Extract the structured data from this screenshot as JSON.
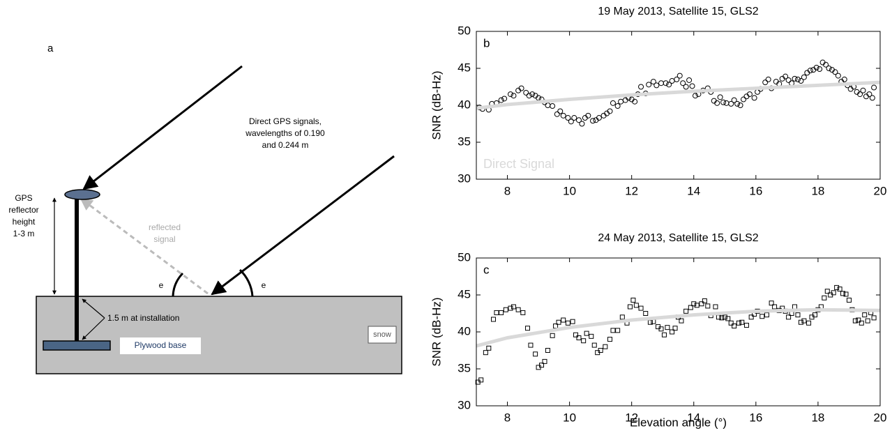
{
  "diagram": {
    "panel": "a",
    "direct_signals": [
      "Direct GPS signals,",
      "wavelengths of 0.190",
      "and 0.244 m"
    ],
    "reflected": [
      "reflected",
      "signal"
    ],
    "height": [
      "GPS",
      "reflector",
      "height",
      "1-3 m"
    ],
    "angle_left": "e",
    "angle_right": "e",
    "installation": "1.5 m at installation",
    "base": "Plywood base",
    "snow": "snow"
  },
  "chart_data": [
    {
      "type": "scatter",
      "panel": "b",
      "title": "19 May 2013, Satellite 15, GLS2",
      "y_label": "SNR (dB-Hz)",
      "xlim": [
        7,
        20
      ],
      "xticks": [
        8,
        10,
        12,
        14,
        16,
        18,
        20
      ],
      "ylim": [
        30,
        50
      ],
      "yticks": [
        30,
        35,
        40,
        45,
        50
      ],
      "series": [
        {
          "marker": "circle",
          "color": "#000000",
          "x": [
            7.1,
            7.2,
            7.4,
            7.5,
            7.65,
            7.8,
            7.9,
            8.1,
            8.2,
            8.35,
            8.45,
            8.6,
            8.7,
            8.8,
            8.9,
            9.0,
            9.1,
            9.2,
            9.3,
            9.45,
            9.6,
            9.7,
            9.8,
            9.95,
            10.05,
            10.15,
            10.3,
            10.4,
            10.5,
            10.6,
            10.75,
            10.85,
            10.95,
            11.1,
            11.2,
            11.3,
            11.4,
            11.55,
            11.65,
            11.8,
            11.9,
            12.0,
            12.1,
            12.2,
            12.3,
            12.45,
            12.55,
            12.7,
            12.8,
            12.95,
            13.1,
            13.2,
            13.3,
            13.45,
            13.55,
            13.65,
            13.75,
            13.85,
            13.95,
            14.05,
            14.15,
            14.3,
            14.45,
            14.55,
            14.65,
            14.75,
            14.85,
            14.95,
            15.05,
            15.2,
            15.3,
            15.4,
            15.5,
            15.6,
            15.7,
            15.8,
            15.95,
            16.05,
            16.15,
            16.3,
            16.4,
            16.5,
            16.65,
            16.75,
            16.85,
            16.95,
            17.05,
            17.15,
            17.25,
            17.35,
            17.45,
            17.55,
            17.65,
            17.75,
            17.85,
            17.95,
            18.05,
            18.15,
            18.25,
            18.35,
            18.45,
            18.55,
            18.65,
            18.75,
            18.85,
            18.95,
            19.05,
            19.15,
            19.25,
            19.35,
            19.45,
            19.55,
            19.65,
            19.75,
            19.8
          ],
          "values": [
            39.7,
            39.5,
            39.4,
            40.2,
            40.3,
            40.7,
            40.9,
            41.5,
            41.3,
            42.0,
            42.3,
            41.7,
            41.3,
            41.5,
            41.3,
            41.0,
            40.8,
            40.4,
            40.0,
            39.9,
            38.8,
            39.2,
            38.6,
            38.3,
            37.8,
            38.3,
            38.0,
            37.5,
            38.3,
            38.6,
            37.9,
            38.0,
            38.3,
            38.6,
            38.9,
            39.2,
            40.3,
            39.9,
            40.5,
            40.7,
            41.0,
            40.8,
            40.5,
            41.5,
            42.5,
            41.6,
            42.8,
            43.2,
            42.7,
            43.0,
            43.0,
            42.8,
            43.3,
            43.5,
            44.0,
            43.0,
            42.5,
            43.4,
            42.6,
            41.3,
            41.5,
            42.0,
            42.3,
            41.8,
            40.6,
            40.3,
            41.1,
            40.4,
            40.3,
            40.2,
            40.7,
            40.2,
            40.0,
            40.8,
            41.2,
            41.5,
            41.0,
            41.8,
            42.2,
            43.1,
            43.5,
            42.3,
            43.2,
            42.9,
            43.6,
            43.9,
            43.4,
            43.0,
            43.6,
            43.5,
            43.3,
            43.8,
            44.4,
            44.7,
            44.8,
            45.1,
            44.9,
            45.8,
            45.5,
            45.0,
            44.8,
            44.5,
            44.0,
            43.2,
            43.5,
            42.7,
            42.2,
            42.5,
            41.8,
            41.5,
            42.0,
            41.2,
            41.5,
            41.0,
            42.4
          ]
        },
        {
          "name": "Direct Signal",
          "marker": "line",
          "color": "#d9d9d9",
          "x": [
            7,
            8,
            10,
            12,
            14,
            16,
            18,
            20
          ],
          "values": [
            39.6,
            40.1,
            40.8,
            41.4,
            41.9,
            42.3,
            42.7,
            43.1
          ]
        }
      ]
    },
    {
      "type": "scatter",
      "panel": "c",
      "title": "24 May 2013, Satellite 15, GLS2",
      "y_label": "SNR (dB-Hz)",
      "x_label": "Elevation angle (°)",
      "xlim": [
        7,
        20
      ],
      "xticks": [
        8,
        10,
        12,
        14,
        16,
        18,
        20
      ],
      "ylim": [
        30,
        50
      ],
      "yticks": [
        30,
        35,
        40,
        45,
        50
      ],
      "series": [
        {
          "marker": "square",
          "color": "#000000",
          "x": [
            7.05,
            7.15,
            7.3,
            7.4,
            7.55,
            7.65,
            7.8,
            7.95,
            8.1,
            8.2,
            8.35,
            8.5,
            8.65,
            8.75,
            8.9,
            9.0,
            9.1,
            9.2,
            9.3,
            9.45,
            9.55,
            9.65,
            9.8,
            9.95,
            10.1,
            10.2,
            10.3,
            10.45,
            10.55,
            10.7,
            10.8,
            10.9,
            11.0,
            11.15,
            11.3,
            11.4,
            11.55,
            11.7,
            11.85,
            11.95,
            12.05,
            12.15,
            12.3,
            12.45,
            12.6,
            12.7,
            12.85,
            12.95,
            13.05,
            13.15,
            13.3,
            13.4,
            13.5,
            13.6,
            13.75,
            13.9,
            14.0,
            14.1,
            14.25,
            14.35,
            14.45,
            14.55,
            14.7,
            14.8,
            14.9,
            15.0,
            15.1,
            15.2,
            15.3,
            15.45,
            15.55,
            15.7,
            15.85,
            15.95,
            16.05,
            16.2,
            16.35,
            16.5,
            16.6,
            16.75,
            16.85,
            16.95,
            17.05,
            17.15,
            17.25,
            17.35,
            17.45,
            17.55,
            17.7,
            17.8,
            17.9,
            18.0,
            18.1,
            18.2,
            18.3,
            18.4,
            18.5,
            18.6,
            18.7,
            18.8,
            18.9,
            19.0,
            19.1,
            19.2,
            19.3,
            19.4,
            19.5,
            19.6,
            19.7,
            19.8
          ],
          "values": [
            33.2,
            33.5,
            37.2,
            37.8,
            41.7,
            42.6,
            42.6,
            43.0,
            43.2,
            43.4,
            43.0,
            42.6,
            40.5,
            38.2,
            37.0,
            35.2,
            35.5,
            36.0,
            37.5,
            39.5,
            40.8,
            41.3,
            41.6,
            41.2,
            41.4,
            39.6,
            39.2,
            38.8,
            39.8,
            39.4,
            38.2,
            37.2,
            37.5,
            38.0,
            39.0,
            40.2,
            40.2,
            42.0,
            41.2,
            43.4,
            44.3,
            43.6,
            43.2,
            42.5,
            41.3,
            41.4,
            40.7,
            40.4,
            39.6,
            40.6,
            40.0,
            40.5,
            42.0,
            41.5,
            42.8,
            43.3,
            43.8,
            43.6,
            43.8,
            44.2,
            43.5,
            42.2,
            43.4,
            42.0,
            41.9,
            42.0,
            41.8,
            41.2,
            40.8,
            41.2,
            41.3,
            40.9,
            42.0,
            42.4,
            42.8,
            42.1,
            42.3,
            43.9,
            43.4,
            42.9,
            43.2,
            42.8,
            42.0,
            42.5,
            43.4,
            42.3,
            41.3,
            41.5,
            41.2,
            42.0,
            42.3,
            43.0,
            43.4,
            44.6,
            45.5,
            45.0,
            45.3,
            46.0,
            45.8,
            45.2,
            45.1,
            44.3,
            43.0,
            41.5,
            41.6,
            41.2,
            42.3,
            41.5,
            42.6,
            41.9
          ]
        },
        {
          "marker": "line",
          "color": "#d9d9d9",
          "x": [
            7,
            8,
            10,
            12,
            14,
            16,
            18,
            20
          ],
          "values": [
            38.1,
            39.2,
            40.6,
            41.6,
            42.3,
            42.8,
            43.0,
            42.9
          ]
        }
      ]
    }
  ]
}
